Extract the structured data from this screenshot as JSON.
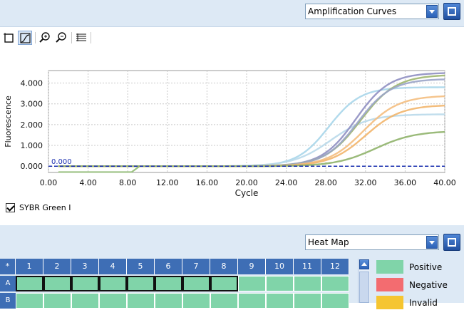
{
  "top": {
    "view_select": {
      "value": "Amplification Curves"
    }
  },
  "toolbar": {
    "tools": [
      {
        "name": "select-tool-icon"
      },
      {
        "name": "curve-view-icon",
        "active": true
      },
      {
        "name": "zoom-in-icon"
      },
      {
        "name": "zoom-out-icon"
      },
      {
        "name": "table-settings-icon"
      }
    ]
  },
  "chart_data": {
    "type": "line",
    "xlabel": "Cycle",
    "ylabel": "Fluorescence",
    "xlim": [
      0,
      40
    ],
    "ylim": [
      -0.3,
      4.6
    ],
    "xticks": [
      "0.00",
      "4.00",
      "8.00",
      "12.00",
      "16.00",
      "20.00",
      "24.00",
      "28.00",
      "32.00",
      "36.00",
      "40.00"
    ],
    "yticks": [
      "0.000",
      "1.000",
      "2.000",
      "3.000",
      "4.000"
    ],
    "grid": true,
    "threshold": {
      "value": 0.0,
      "label": "0.000",
      "color": "#1a2fb0"
    },
    "series": [
      {
        "color": "#a9d6ea",
        "plateau": 3.8,
        "midpoint": 28.3,
        "steepness": 1.6
      },
      {
        "color": "#b9d9ea",
        "plateau": 2.5,
        "midpoint": 28.5,
        "steepness": 1.9
      },
      {
        "color": "#8f8fc2",
        "plateau": 4.5,
        "midpoint": 31.0,
        "steepness": 1.7
      },
      {
        "color": "#9db66e",
        "plateau": 4.4,
        "midpoint": 31.5,
        "steepness": 1.8
      },
      {
        "color": "#9aa4c8",
        "plateau": 4.2,
        "midpoint": 31.2,
        "steepness": 1.7
      },
      {
        "color": "#f4be80",
        "plateau": 3.4,
        "midpoint": 31.8,
        "steepness": 1.8
      },
      {
        "color": "#f2b56b",
        "plateau": 2.95,
        "midpoint": 32.0,
        "steepness": 1.8
      },
      {
        "color": "#8fb26a",
        "plateau": 1.7,
        "midpoint": 33.0,
        "steepness": 2.0
      }
    ],
    "baseline_offset": {
      "color": "#9cc283",
      "value": -0.28,
      "until_cycle": 9.2
    }
  },
  "legend": {
    "checkbox_label": "SYBR Green I",
    "checked": true
  },
  "plate": {
    "view_select": {
      "value": "Heat Map"
    },
    "corner": "*",
    "columns": [
      "1",
      "2",
      "3",
      "4",
      "5",
      "6",
      "7",
      "8",
      "9",
      "10",
      "11",
      "12"
    ],
    "rows": [
      "A",
      "B"
    ],
    "selected_columns_row_a": 8
  },
  "heat_legend": [
    {
      "label": "Positive",
      "color": "#80d4a9"
    },
    {
      "label": "Negative",
      "color": "#f36c70"
    },
    {
      "label": "Invalid",
      "color": "#f5c531"
    }
  ]
}
